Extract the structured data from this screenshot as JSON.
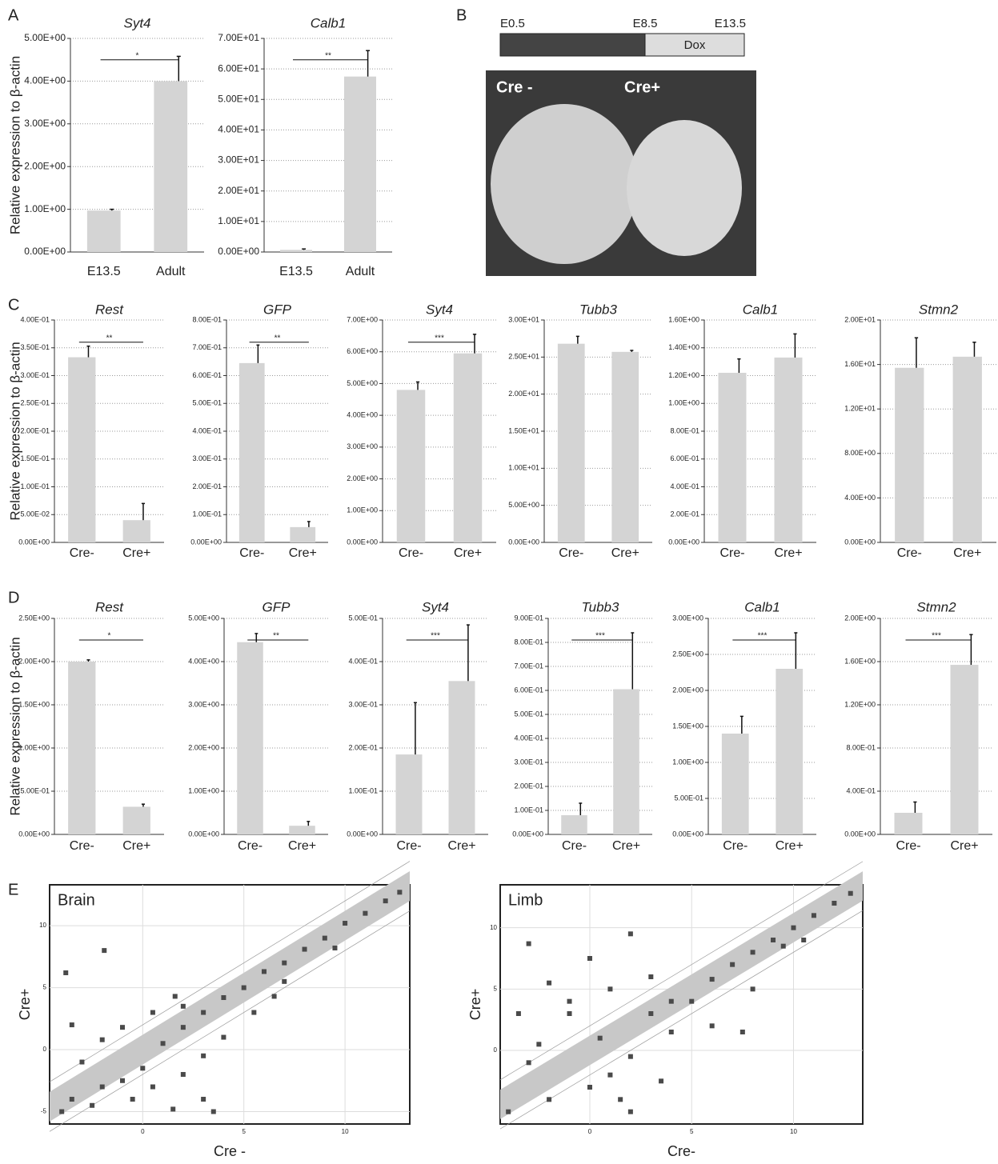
{
  "panel_labels": [
    "A",
    "B",
    "C",
    "D",
    "E"
  ],
  "panel_b": {
    "timeline": [
      "E0.5",
      "E8.5",
      "E13.5"
    ],
    "treatment": "Dox",
    "groups": [
      "Cre -",
      "Cre+"
    ]
  },
  "chart_data": [
    {
      "type": "bar",
      "title": "Syt4",
      "ylabel": "Relative expression to β-actin",
      "categories": [
        "E13.5",
        "Adult"
      ],
      "values": [
        0.97,
        4.0
      ],
      "errors": [
        0.03,
        0.58
      ],
      "significance": "*",
      "color": "#d4d4d4",
      "grid": true,
      "ylim": [
        0,
        5
      ],
      "yticks": [
        {
          "value": 0,
          "label": "0.00E+00"
        },
        {
          "value": 1,
          "label": "1.00E+00"
        },
        {
          "value": 2,
          "label": "2.00E+00"
        },
        {
          "value": 3,
          "label": "3.00E+00"
        },
        {
          "value": 4,
          "label": "4.00E+00"
        },
        {
          "value": 5,
          "label": "5.00E+00"
        }
      ]
    },
    {
      "type": "bar",
      "title": "Calb1",
      "categories": [
        "E13.5",
        "Adult"
      ],
      "values": [
        0.7,
        57.5
      ],
      "errors": [
        0.3,
        8.5
      ],
      "significance": "**",
      "color": "#d4d4d4",
      "grid": true,
      "ylim": [
        0,
        70
      ],
      "yticks": [
        {
          "value": 0,
          "label": "0.00E+00"
        },
        {
          "value": 10,
          "label": "1.00E+01"
        },
        {
          "value": 20,
          "label": "2.00E+01"
        },
        {
          "value": 30,
          "label": "3.00E+01"
        },
        {
          "value": 40,
          "label": "4.00E+01"
        },
        {
          "value": 50,
          "label": "5.00E+01"
        },
        {
          "value": 60,
          "label": "6.00E+01"
        },
        {
          "value": 70,
          "label": "7.00E+01"
        }
      ]
    },
    {
      "type": "bar",
      "title": "Rest",
      "ylabel": "Relative expression to β-actin",
      "categories": [
        "Cre-",
        "Cre+"
      ],
      "values": [
        0.333,
        0.04
      ],
      "errors": [
        0.02,
        0.03
      ],
      "significance": "**",
      "color": "#d4d4d4",
      "grid": true,
      "ylim": [
        0,
        0.4
      ],
      "yticks": [
        {
          "value": 0,
          "label": "0.00E+00"
        },
        {
          "value": 0.05,
          "label": "5.00E-02"
        },
        {
          "value": 0.1,
          "label": "1.00E-01"
        },
        {
          "value": 0.15,
          "label": "1.50E-01"
        },
        {
          "value": 0.2,
          "label": "2.00E-01"
        },
        {
          "value": 0.25,
          "label": "2.50E-01"
        },
        {
          "value": 0.3,
          "label": "3.00E-01"
        },
        {
          "value": 0.35,
          "label": "3.50E-01"
        },
        {
          "value": 0.4,
          "label": "4.00E-01"
        }
      ]
    },
    {
      "type": "bar",
      "title": "GFP",
      "categories": [
        "Cre-",
        "Cre+"
      ],
      "values": [
        0.645,
        0.055
      ],
      "errors": [
        0.065,
        0.02
      ],
      "significance": "**",
      "color": "#d4d4d4",
      "grid": true,
      "ylim": [
        0,
        0.8
      ],
      "yticks": [
        {
          "value": 0,
          "label": "0.00E+00"
        },
        {
          "value": 0.1,
          "label": "1.00E-01"
        },
        {
          "value": 0.2,
          "label": "2.00E-01"
        },
        {
          "value": 0.3,
          "label": "3.00E-01"
        },
        {
          "value": 0.4,
          "label": "4.00E-01"
        },
        {
          "value": 0.5,
          "label": "5.00E-01"
        },
        {
          "value": 0.6,
          "label": "6.00E-01"
        },
        {
          "value": 0.7,
          "label": "7.00E-01"
        },
        {
          "value": 0.8,
          "label": "8.00E-01"
        }
      ]
    },
    {
      "type": "bar",
      "title": "Syt4",
      "categories": [
        "Cre-",
        "Cre+"
      ],
      "values": [
        4.8,
        5.95
      ],
      "errors": [
        0.25,
        0.6
      ],
      "significance": "***",
      "color": "#d4d4d4",
      "grid": true,
      "ylim": [
        0,
        7
      ],
      "yticks": [
        {
          "value": 0,
          "label": "0.00E+00"
        },
        {
          "value": 1,
          "label": "1.00E+00"
        },
        {
          "value": 2,
          "label": "2.00E+00"
        },
        {
          "value": 3,
          "label": "3.00E+00"
        },
        {
          "value": 4,
          "label": "4.00E+00"
        },
        {
          "value": 5,
          "label": "5.00E+00"
        },
        {
          "value": 6,
          "label": "6.00E+00"
        },
        {
          "value": 7,
          "label": "7.00E+00"
        }
      ]
    },
    {
      "type": "bar",
      "title": "Tubb3",
      "categories": [
        "Cre-",
        "Cre+"
      ],
      "values": [
        26.8,
        25.7
      ],
      "errors": [
        1.0,
        0.2
      ],
      "color": "#d4d4d4",
      "grid": true,
      "ylim": [
        0,
        30
      ],
      "yticks": [
        {
          "value": 0,
          "label": "0.00E+00"
        },
        {
          "value": 5,
          "label": "5.00E+00"
        },
        {
          "value": 10,
          "label": "1.00E+01"
        },
        {
          "value": 15,
          "label": "1.50E+01"
        },
        {
          "value": 20,
          "label": "2.00E+01"
        },
        {
          "value": 25,
          "label": "2.50E+01"
        },
        {
          "value": 30,
          "label": "3.00E+01"
        }
      ]
    },
    {
      "type": "bar",
      "title": "Calb1",
      "categories": [
        "Cre-",
        "Cre+"
      ],
      "values": [
        1.22,
        1.33
      ],
      "errors": [
        0.1,
        0.17
      ],
      "color": "#d4d4d4",
      "grid": true,
      "ylim": [
        0,
        1.6
      ],
      "yticks": [
        {
          "value": 0,
          "label": "0.00E+00"
        },
        {
          "value": 0.2,
          "label": "2.00E-01"
        },
        {
          "value": 0.4,
          "label": "4.00E-01"
        },
        {
          "value": 0.6,
          "label": "6.00E-01"
        },
        {
          "value": 0.8,
          "label": "8.00E-01"
        },
        {
          "value": 1.0,
          "label": "1.00E+00"
        },
        {
          "value": 1.2,
          "label": "1.20E+00"
        },
        {
          "value": 1.4,
          "label": "1.40E+00"
        },
        {
          "value": 1.6,
          "label": "1.60E+00"
        }
      ]
    },
    {
      "type": "bar",
      "title": "Stmn2",
      "categories": [
        "Cre-",
        "Cre+"
      ],
      "values": [
        15.7,
        16.7
      ],
      "errors": [
        2.7,
        1.3
      ],
      "color": "#d4d4d4",
      "grid": true,
      "ylim": [
        0,
        20
      ],
      "yticks": [
        {
          "value": 0,
          "label": "0.00E+00"
        },
        {
          "value": 4,
          "label": "4.00E+00"
        },
        {
          "value": 8,
          "label": "8.00E+00"
        },
        {
          "value": 12,
          "label": "1.20E+01"
        },
        {
          "value": 16,
          "label": "1.60E+01"
        },
        {
          "value": 20,
          "label": "2.00E+01"
        }
      ]
    },
    {
      "type": "bar",
      "title": "Rest",
      "ylabel": "Relative expression to β-actin",
      "categories": [
        "Cre-",
        "Cre+"
      ],
      "values": [
        2.0,
        0.32
      ],
      "errors": [
        0.02,
        0.03
      ],
      "significance": "*",
      "color": "#d4d4d4",
      "grid": true,
      "ylim": [
        0,
        2.5
      ],
      "yticks": [
        {
          "value": 0,
          "label": "0.00E+00"
        },
        {
          "value": 0.5,
          "label": "5.00E-01"
        },
        {
          "value": 1.0,
          "label": "1.00E+00"
        },
        {
          "value": 1.5,
          "label": "1.50E+00"
        },
        {
          "value": 2.0,
          "label": "2.00E+00"
        },
        {
          "value": 2.5,
          "label": "2.50E+00"
        }
      ]
    },
    {
      "type": "bar",
      "title": "GFP",
      "categories": [
        "Cre-",
        "Cre+"
      ],
      "values": [
        4.45,
        0.2
      ],
      "errors": [
        0.2,
        0.1
      ],
      "significance": "**",
      "color": "#d4d4d4",
      "grid": true,
      "ylim": [
        0,
        5
      ],
      "yticks": [
        {
          "value": 0,
          "label": "0.00E+00"
        },
        {
          "value": 1,
          "label": "1.00E+00"
        },
        {
          "value": 2,
          "label": "2.00E+00"
        },
        {
          "value": 3,
          "label": "3.00E+00"
        },
        {
          "value": 4,
          "label": "4.00E+00"
        },
        {
          "value": 5,
          "label": "5.00E+00"
        }
      ]
    },
    {
      "type": "bar",
      "title": "Syt4",
      "categories": [
        "Cre-",
        "Cre+"
      ],
      "values": [
        0.185,
        0.355
      ],
      "errors": [
        0.12,
        0.13
      ],
      "significance": "***",
      "color": "#d4d4d4",
      "grid": true,
      "ylim": [
        0,
        0.5
      ],
      "yticks": [
        {
          "value": 0,
          "label": "0.00E+00"
        },
        {
          "value": 0.1,
          "label": "1.00E-01"
        },
        {
          "value": 0.2,
          "label": "2.00E-01"
        },
        {
          "value": 0.3,
          "label": "3.00E-01"
        },
        {
          "value": 0.4,
          "label": "4.00E-01"
        },
        {
          "value": 0.5,
          "label": "5.00E-01"
        }
      ]
    },
    {
      "type": "bar",
      "title": "Tubb3",
      "categories": [
        "Cre-",
        "Cre+"
      ],
      "values": [
        0.08,
        0.605
      ],
      "errors": [
        0.05,
        0.235
      ],
      "significance": "***",
      "color": "#d4d4d4",
      "grid": true,
      "ylim": [
        0,
        0.9
      ],
      "yticks": [
        {
          "value": 0,
          "label": "0.00E+00"
        },
        {
          "value": 0.1,
          "label": "1.00E-01"
        },
        {
          "value": 0.2,
          "label": "2.00E-01"
        },
        {
          "value": 0.3,
          "label": "3.00E-01"
        },
        {
          "value": 0.4,
          "label": "4.00E-01"
        },
        {
          "value": 0.5,
          "label": "5.00E-01"
        },
        {
          "value": 0.6,
          "label": "6.00E-01"
        },
        {
          "value": 0.7,
          "label": "7.00E-01"
        },
        {
          "value": 0.8,
          "label": "8.00E-01"
        },
        {
          "value": 0.9,
          "label": "9.00E-01"
        }
      ]
    },
    {
      "type": "bar",
      "title": "Calb1",
      "categories": [
        "Cre-",
        "Cre+"
      ],
      "values": [
        1.4,
        2.3
      ],
      "errors": [
        0.24,
        0.5
      ],
      "significance": "***",
      "color": "#d4d4d4",
      "grid": true,
      "ylim": [
        0,
        3
      ],
      "yticks": [
        {
          "value": 0,
          "label": "0.00E+00"
        },
        {
          "value": 0.5,
          "label": "5.00E-01"
        },
        {
          "value": 1.0,
          "label": "1.00E+00"
        },
        {
          "value": 1.5,
          "label": "1.50E+00"
        },
        {
          "value": 2.0,
          "label": "2.00E+00"
        },
        {
          "value": 2.5,
          "label": "2.50E+00"
        },
        {
          "value": 3.0,
          "label": "3.00E+00"
        }
      ]
    },
    {
      "type": "bar",
      "title": "Stmn2",
      "categories": [
        "Cre-",
        "Cre+"
      ],
      "values": [
        0.2,
        1.57
      ],
      "errors": [
        0.1,
        0.28
      ],
      "significance": "***",
      "color": "#d4d4d4",
      "grid": true,
      "ylim": [
        0,
        2
      ],
      "yticks": [
        {
          "value": 0,
          "label": "0.00E+00"
        },
        {
          "value": 0.4,
          "label": "4.00E-01"
        },
        {
          "value": 0.8,
          "label": "8.00E-01"
        },
        {
          "value": 1.2,
          "label": "1.20E+00"
        },
        {
          "value": 1.6,
          "label": "1.60E+00"
        },
        {
          "value": 2.0,
          "label": "2.00E+00"
        }
      ]
    },
    {
      "type": "scatter",
      "title": "Brain",
      "xlabel": "Cre -",
      "ylabel": "Cre+",
      "color": "#4a4a4a",
      "grid": true,
      "xlim": [
        -4.6,
        13.2
      ],
      "ylim": [
        -6,
        13.3
      ],
      "xticks": [
        0,
        5,
        10
      ],
      "yticks": [
        -5,
        0,
        5,
        10
      ],
      "x": [
        -3.8,
        -1.9,
        1.6,
        -3,
        -2,
        -1,
        0,
        1,
        2,
        3,
        4,
        5,
        6,
        7,
        8,
        9,
        10,
        11,
        12,
        12.7,
        -4,
        -3.5,
        -2.5,
        0.5,
        2,
        3.5,
        3,
        4,
        5.5,
        7,
        9.5,
        -3.5,
        -2,
        -1,
        0.5,
        2,
        3,
        1.5,
        -0.5,
        6.5
      ],
      "y": [
        6.2,
        8,
        4.3,
        -1,
        -3,
        -2.5,
        -1.5,
        0.5,
        1.8,
        3,
        4.2,
        5,
        6.3,
        7,
        8.1,
        9,
        10.2,
        11,
        12,
        12.7,
        -5,
        -4,
        -4.5,
        -3,
        -2,
        -5,
        -0.5,
        1,
        3,
        5.5,
        8.2,
        2,
        0.8,
        1.8,
        3,
        3.5,
        -4,
        -4.8,
        -4,
        4.3
      ]
    },
    {
      "type": "scatter",
      "title": "Limb",
      "xlabel": "Cre-",
      "ylabel": "Cre+",
      "color": "#4a4a4a",
      "grid": true,
      "xlim": [
        -4.4,
        13.4
      ],
      "ylim": [
        -6,
        13.5
      ],
      "xticks": [
        0,
        5,
        10
      ],
      "yticks": [
        0,
        5,
        10
      ],
      "x": [
        2,
        0,
        -3,
        -2,
        1,
        3,
        -1,
        -3,
        0,
        1,
        2,
        4,
        5,
        6,
        7,
        8,
        9,
        10,
        11,
        12,
        12.8,
        -4,
        -2,
        2,
        6,
        8,
        9.5,
        10.5,
        7.5,
        -3.5,
        -1,
        0.5,
        3,
        4,
        -2.5,
        1.5,
        3.5
      ],
      "y": [
        9.5,
        7.5,
        8.7,
        5.5,
        5,
        6,
        3,
        -1,
        -3,
        -2,
        -0.5,
        1.5,
        4,
        5.8,
        7,
        8,
        9,
        10,
        11,
        12,
        12.8,
        -5,
        -4,
        -5,
        2,
        5,
        8.5,
        9,
        1.5,
        3,
        4,
        1,
        3,
        4,
        0.5,
        -4,
        -2.5
      ]
    }
  ]
}
